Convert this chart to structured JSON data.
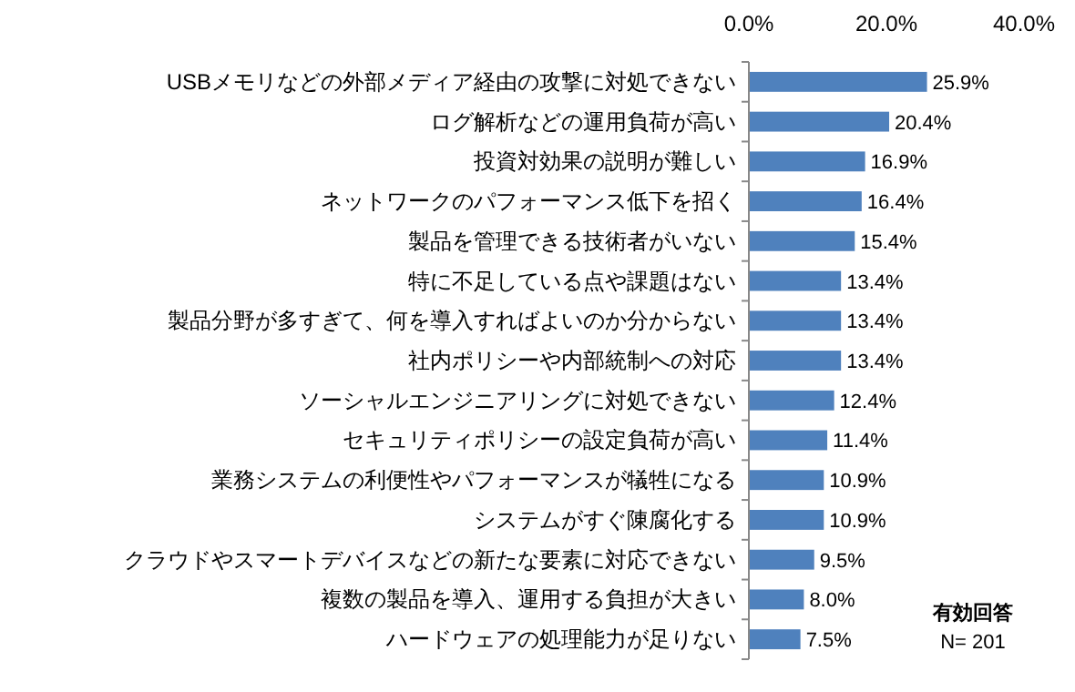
{
  "chart_data": {
    "type": "bar",
    "orientation": "horizontal",
    "categories": [
      "USBメモリなどの外部メディア経由の攻撃に対処できない",
      "ログ解析などの運用負荷が高い",
      "投資対効果の説明が難しい",
      "ネットワークのパフォーマンス低下を招く",
      "製品を管理できる技術者がいない",
      "特に不足している点や課題はない",
      "製品分野が多すぎて、何を導入すればよいのか分からない",
      "社内ポリシーや内部統制への対応",
      "ソーシャルエンジニアリングに対処できない",
      "セキュリティポリシーの設定負荷が高い",
      "業務システムの利便性やパフォーマンスが犠牲になる",
      "システムがすぐ陳腐化する",
      "クラウドやスマートデバイスなどの新たな要素に対応できない",
      "複数の製品を導入、運用する負担が大きい",
      "ハードウェアの処理能力が足りない"
    ],
    "series": [
      {
        "color": "#4f81bd",
        "values": [
          25.9,
          20.4,
          16.9,
          16.4,
          15.4,
          13.4,
          13.4,
          13.4,
          12.4,
          11.4,
          10.9,
          10.9,
          9.5,
          8.0,
          7.5
        ],
        "value_labels": [
          "25.9%",
          "20.4%",
          "16.9%",
          "16.4%",
          "15.4%",
          "13.4%",
          "13.4%",
          "13.4%",
          "12.4%",
          "11.4%",
          "10.9%",
          "10.9%",
          "9.5%",
          "8.0%",
          "7.5%"
        ]
      }
    ],
    "xlim": [
      0,
      40
    ],
    "xticks": [
      {
        "value": 0,
        "label": "0.0%"
      },
      {
        "value": 20,
        "label": "20.0%"
      },
      {
        "value": 40,
        "label": "40.0%"
      }
    ],
    "grid": false,
    "annotations": [
      "有効回答",
      "N= 201"
    ]
  }
}
